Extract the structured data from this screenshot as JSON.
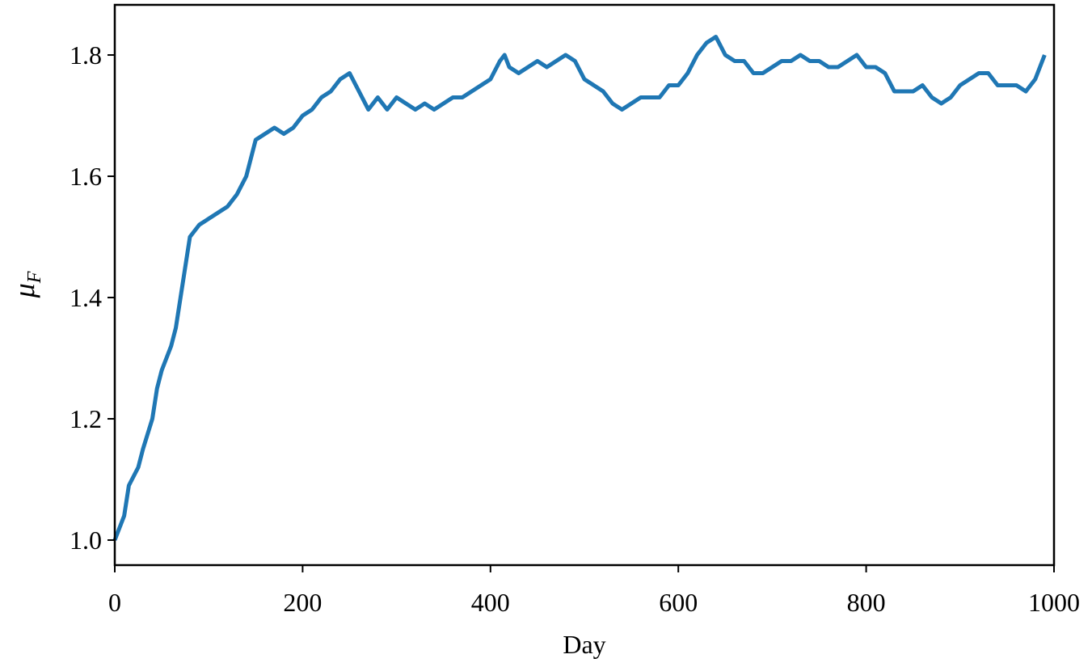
{
  "chart_data": {
    "type": "line",
    "xlabel": "Day",
    "ylabel": {
      "text": "μ",
      "subscript": "F"
    },
    "x": [
      0,
      10,
      15,
      25,
      30,
      40,
      45,
      50,
      60,
      65,
      70,
      75,
      80,
      90,
      100,
      110,
      120,
      130,
      140,
      150,
      160,
      170,
      180,
      190,
      200,
      210,
      220,
      230,
      240,
      250,
      260,
      270,
      280,
      290,
      300,
      310,
      320,
      330,
      340,
      350,
      360,
      370,
      380,
      390,
      400,
      410,
      415,
      420,
      430,
      440,
      450,
      460,
      470,
      480,
      490,
      500,
      510,
      520,
      530,
      540,
      550,
      560,
      570,
      580,
      590,
      600,
      610,
      620,
      630,
      640,
      650,
      660,
      670,
      680,
      690,
      700,
      710,
      720,
      730,
      740,
      750,
      760,
      770,
      780,
      790,
      800,
      810,
      820,
      830,
      840,
      850,
      860,
      870,
      880,
      890,
      900,
      910,
      920,
      930,
      940,
      950,
      960,
      970,
      980,
      990
    ],
    "series": [
      {
        "color": "#1f77b4",
        "values": [
          1.0,
          1.04,
          1.09,
          1.12,
          1.15,
          1.2,
          1.25,
          1.28,
          1.32,
          1.35,
          1.4,
          1.45,
          1.5,
          1.52,
          1.53,
          1.54,
          1.55,
          1.57,
          1.6,
          1.66,
          1.67,
          1.68,
          1.67,
          1.68,
          1.7,
          1.71,
          1.73,
          1.74,
          1.76,
          1.77,
          1.74,
          1.71,
          1.73,
          1.71,
          1.73,
          1.72,
          1.71,
          1.72,
          1.71,
          1.72,
          1.73,
          1.73,
          1.74,
          1.75,
          1.76,
          1.79,
          1.8,
          1.78,
          1.77,
          1.78,
          1.79,
          1.78,
          1.79,
          1.8,
          1.79,
          1.76,
          1.75,
          1.74,
          1.72,
          1.71,
          1.72,
          1.73,
          1.73,
          1.73,
          1.75,
          1.75,
          1.77,
          1.8,
          1.82,
          1.83,
          1.8,
          1.79,
          1.79,
          1.77,
          1.77,
          1.78,
          1.79,
          1.79,
          1.8,
          1.79,
          1.79,
          1.78,
          1.78,
          1.79,
          1.8,
          1.78,
          1.78,
          1.77,
          1.74,
          1.74,
          1.74,
          1.75,
          1.73,
          1.72,
          1.73,
          1.75,
          1.76,
          1.77,
          1.77,
          1.75,
          1.75,
          1.75,
          1.74,
          1.76,
          1.8
        ]
      }
    ],
    "xlim": [
      0,
      1000
    ],
    "xticks": [
      0,
      200,
      400,
      600,
      800,
      1000
    ],
    "ylim": [
      0.9587,
      1.8827
    ],
    "yticks": [
      {
        "value": 1,
        "label": "1.0"
      },
      1.2,
      1.4,
      1.6,
      1.8
    ]
  }
}
